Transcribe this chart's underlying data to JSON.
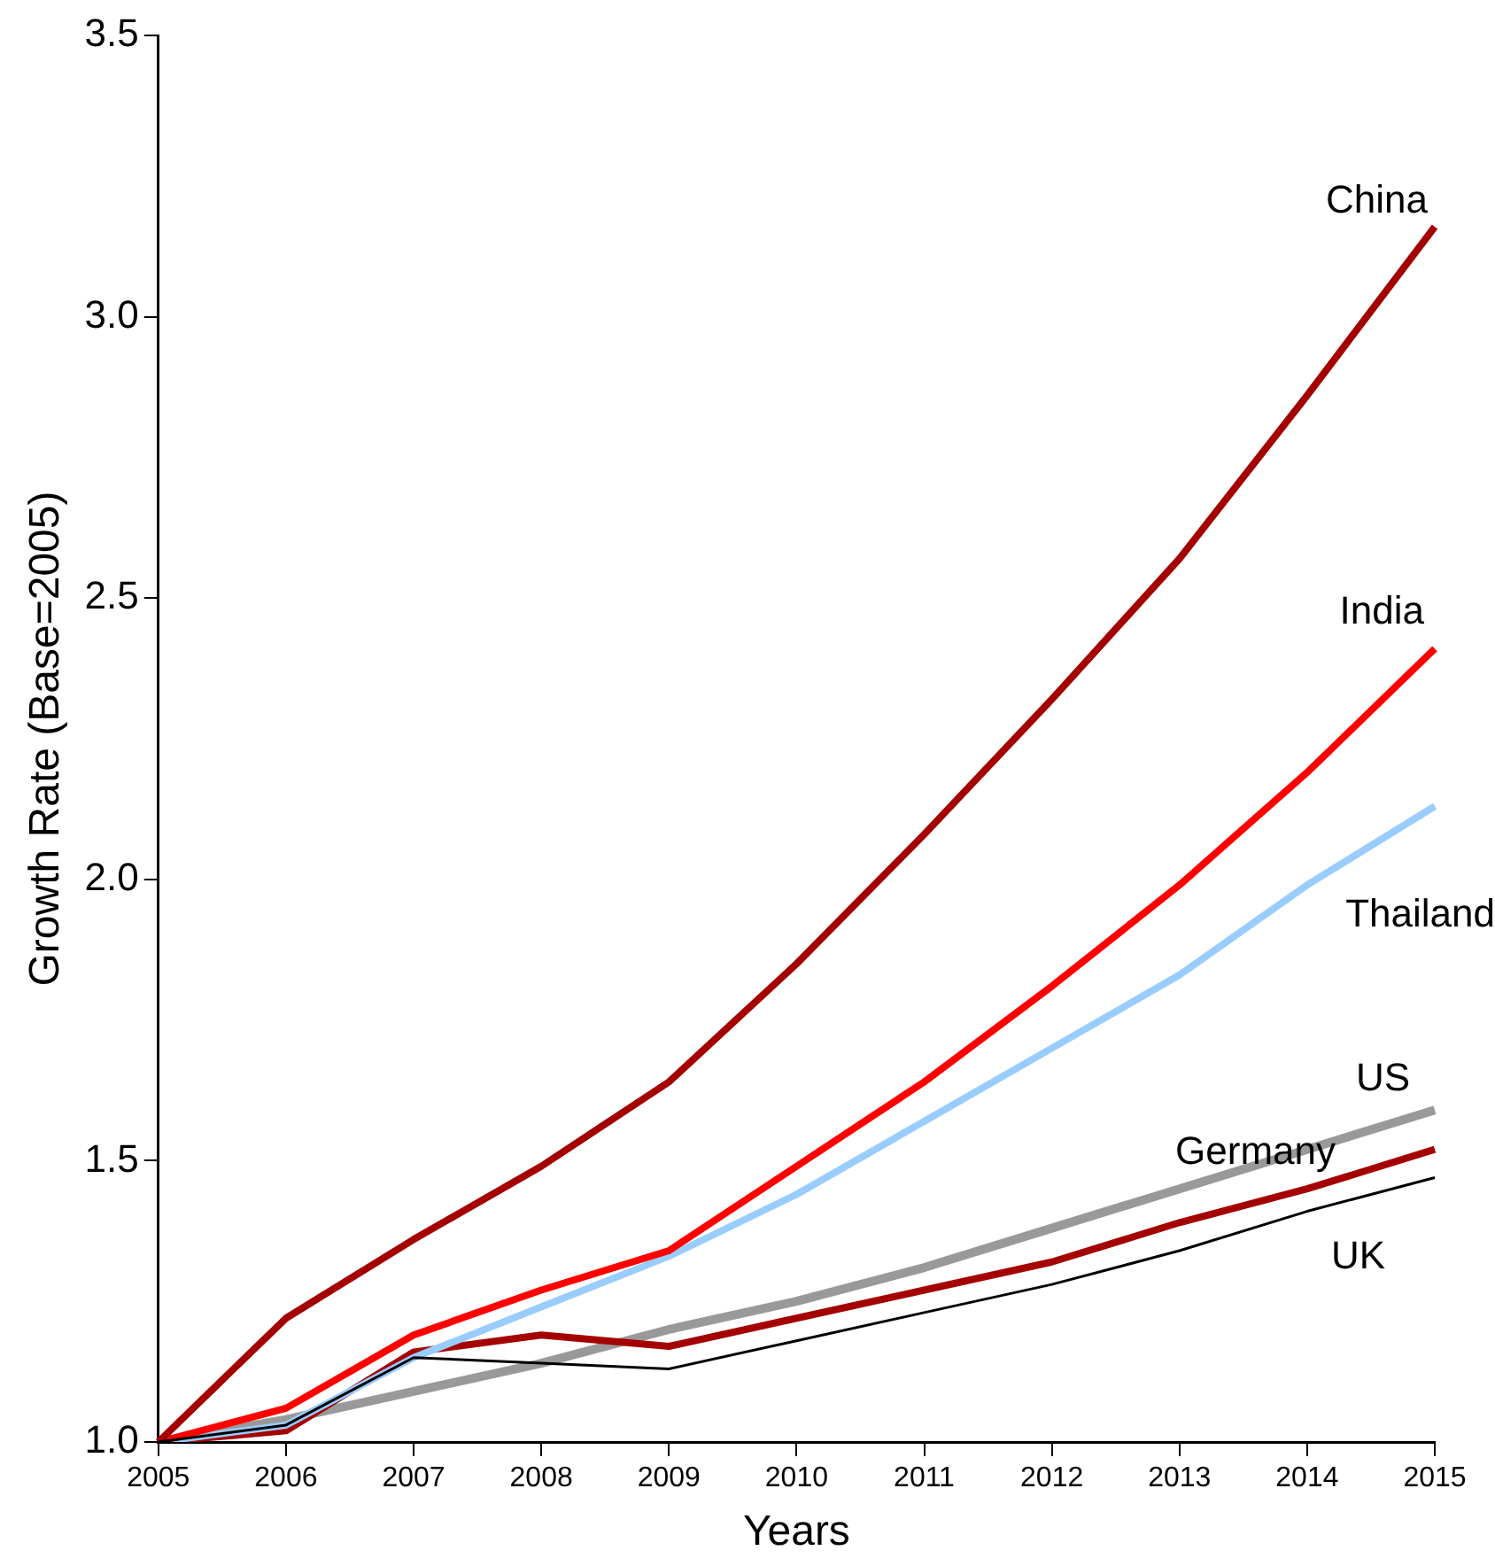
{
  "chart_data": {
    "type": "line",
    "xlabel": "Years",
    "ylabel": "Growth Rate (Base=2005)",
    "categories": [
      "2005",
      "2006",
      "2007",
      "2008",
      "2009",
      "2010",
      "2011",
      "2012",
      "2013",
      "2014",
      "2015"
    ],
    "ylim": [
      1.0,
      3.5
    ],
    "yticks": [
      {
        "value": 1,
        "label": "1.0"
      },
      1.5,
      {
        "value": 2,
        "label": "2.0"
      },
      2.5,
      {
        "value": 3,
        "label": "3.0"
      },
      3.5
    ],
    "grid": false,
    "legend": false,
    "marker": "none",
    "line_style": "solid",
    "series": [
      {
        "name": "China",
        "color": "#a50000",
        "values": [
          1.0,
          1.22,
          1.36,
          1.49,
          1.64,
          1.85,
          2.08,
          2.32,
          2.57,
          2.86,
          3.16
        ]
      },
      {
        "name": "India",
        "color": "#ff0000",
        "values": [
          1.0,
          1.06,
          1.19,
          1.27,
          1.34,
          1.49,
          1.64,
          1.81,
          1.99,
          2.19,
          2.41
        ]
      },
      {
        "name": "Thailand",
        "color": "#99ccff",
        "values": [
          1.0,
          1.03,
          1.15,
          1.24,
          1.33,
          1.44,
          1.57,
          1.7,
          1.83,
          1.99,
          2.13
        ]
      },
      {
        "name": "US",
        "color": "#999999",
        "values": [
          1.0,
          1.04,
          1.09,
          1.14,
          1.2,
          1.25,
          1.31,
          1.38,
          1.45,
          1.52,
          1.59
        ]
      },
      {
        "name": "Germany",
        "color": "#a50000",
        "values": [
          1.0,
          1.02,
          1.16,
          1.19,
          1.17,
          1.22,
          1.27,
          1.32,
          1.39,
          1.45,
          1.52
        ]
      },
      {
        "name": "UK",
        "color": "#000000",
        "values": [
          1.0,
          1.03,
          1.15,
          1.14,
          1.13,
          1.18,
          1.23,
          1.28,
          1.34,
          1.41,
          1.47
        ]
      }
    ]
  }
}
